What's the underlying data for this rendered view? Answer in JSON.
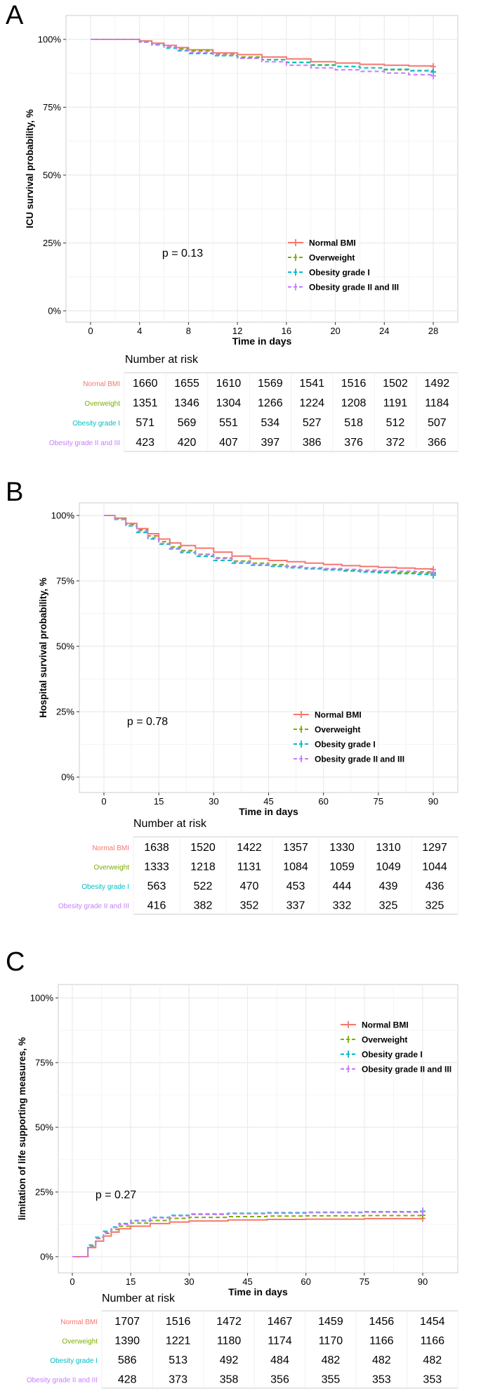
{
  "colors": {
    "normal": "#F8766D",
    "overweight": "#7CAE00",
    "obesity1": "#00BFC4",
    "obesity2": "#C77CFF",
    "panel_bg": "#ffffff",
    "grid": "#ebebeb",
    "border": "#cccccc",
    "text": "#000000",
    "tick_text": "#4d4d4d"
  },
  "risk_title": "Number at risk",
  "chart_data": [
    {
      "type": "line",
      "panel_label": "A",
      "title": "",
      "xlabel": "Time in days",
      "ylabel": "ICU survival probability, %",
      "xlim": [
        0,
        28
      ],
      "ylim": [
        0,
        1
      ],
      "xticks": [
        0,
        4,
        8,
        12,
        16,
        20,
        24,
        28
      ],
      "xtick_labels": [
        "0",
        "4",
        "8",
        "12",
        "16",
        "20",
        "24",
        "28"
      ],
      "yticks": [
        0,
        0.25,
        0.5,
        0.75,
        1
      ],
      "ytick_labels": [
        "0%",
        "25%",
        "50%",
        "75%",
        "100%"
      ],
      "annotation": "p = 0.13",
      "series": [
        {
          "name": "Normal BMI",
          "color_key": "normal",
          "dash": false,
          "x": [
            0,
            4,
            5,
            6,
            7,
            8,
            10,
            12,
            14,
            16,
            18,
            20,
            22,
            24,
            26,
            28
          ],
          "y": [
            1.0,
            0.994,
            0.986,
            0.978,
            0.97,
            0.962,
            0.95,
            0.944,
            0.935,
            0.928,
            0.918,
            0.913,
            0.908,
            0.905,
            0.902,
            0.9
          ]
        },
        {
          "name": "Overweight",
          "color_key": "overweight",
          "dash": true,
          "x": [
            0,
            4,
            5,
            6,
            7,
            8,
            10,
            12,
            14,
            16,
            18,
            20,
            22,
            24,
            26,
            28
          ],
          "y": [
            1.0,
            0.992,
            0.983,
            0.972,
            0.965,
            0.958,
            0.945,
            0.935,
            0.925,
            0.915,
            0.906,
            0.9,
            0.895,
            0.888,
            0.884,
            0.88
          ]
        },
        {
          "name": "Obesity grade I",
          "color_key": "obesity1",
          "dash": true,
          "x": [
            0,
            4,
            5,
            6,
            7,
            8,
            10,
            12,
            14,
            16,
            18,
            20,
            22,
            24,
            26,
            28
          ],
          "y": [
            1.0,
            0.99,
            0.98,
            0.968,
            0.958,
            0.948,
            0.94,
            0.932,
            0.925,
            0.915,
            0.905,
            0.9,
            0.895,
            0.89,
            0.885,
            0.88
          ]
        },
        {
          "name": "Obesity grade II and III",
          "color_key": "obesity2",
          "dash": true,
          "x": [
            0,
            4,
            5,
            6,
            7,
            8,
            10,
            12,
            14,
            16,
            18,
            20,
            22,
            24,
            26,
            28
          ],
          "y": [
            1.0,
            0.99,
            0.982,
            0.972,
            0.962,
            0.952,
            0.942,
            0.93,
            0.918,
            0.905,
            0.895,
            0.888,
            0.882,
            0.876,
            0.87,
            0.866
          ]
        }
      ],
      "risk_table": {
        "row_labels": [
          "Normal BMI",
          "Overweight",
          "Obesity grade I",
          "Obesity grade II and III"
        ],
        "row_color_keys": [
          "normal",
          "overweight",
          "obesity1",
          "obesity2"
        ],
        "rows": [
          [
            "1660",
            "1655",
            "1610",
            "1569",
            "1541",
            "1516",
            "1502",
            "1492"
          ],
          [
            "1351",
            "1346",
            "1304",
            "1266",
            "1224",
            "1208",
            "1191",
            "1184"
          ],
          [
            "571",
            "569",
            "551",
            "534",
            "527",
            "518",
            "512",
            "507"
          ],
          [
            "423",
            "420",
            "407",
            "397",
            "386",
            "376",
            "372",
            "366"
          ]
        ]
      }
    },
    {
      "type": "line",
      "panel_label": "B",
      "title": "",
      "xlabel": "Time in days",
      "ylabel": "Hospital survival probability, %",
      "xlim": [
        0,
        90
      ],
      "ylim": [
        0,
        1
      ],
      "xticks": [
        0,
        15,
        30,
        45,
        60,
        75,
        90
      ],
      "xtick_labels": [
        "0",
        "15",
        "30",
        "45",
        "60",
        "75",
        "90"
      ],
      "yticks": [
        0,
        0.25,
        0.5,
        0.75,
        1
      ],
      "ytick_labels": [
        "0%",
        "25%",
        "50%",
        "75%",
        "100%"
      ],
      "annotation": "p = 0.78",
      "series": [
        {
          "name": "Normal BMI",
          "color_key": "normal",
          "dash": false,
          "x": [
            0,
            3,
            6,
            9,
            12,
            15,
            18,
            21,
            25,
            30,
            35,
            40,
            45,
            50,
            55,
            60,
            65,
            70,
            75,
            80,
            85,
            90
          ],
          "y": [
            1.0,
            0.99,
            0.97,
            0.95,
            0.93,
            0.91,
            0.895,
            0.885,
            0.875,
            0.86,
            0.845,
            0.835,
            0.828,
            0.823,
            0.818,
            0.813,
            0.808,
            0.805,
            0.802,
            0.799,
            0.796,
            0.793
          ]
        },
        {
          "name": "Overweight",
          "color_key": "overweight",
          "dash": true,
          "x": [
            0,
            3,
            6,
            9,
            12,
            15,
            18,
            21,
            25,
            30,
            35,
            40,
            45,
            50,
            55,
            60,
            65,
            70,
            75,
            80,
            85,
            90
          ],
          "y": [
            1.0,
            0.988,
            0.966,
            0.945,
            0.922,
            0.9,
            0.88,
            0.866,
            0.852,
            0.838,
            0.826,
            0.818,
            0.812,
            0.806,
            0.8,
            0.795,
            0.79,
            0.786,
            0.784,
            0.782,
            0.78,
            0.778
          ]
        },
        {
          "name": "Obesity grade I",
          "color_key": "obesity1",
          "dash": true,
          "x": [
            0,
            3,
            6,
            9,
            12,
            15,
            18,
            21,
            25,
            30,
            35,
            40,
            45,
            50,
            55,
            60,
            65,
            70,
            75,
            80,
            85,
            90
          ],
          "y": [
            1.0,
            0.985,
            0.96,
            0.935,
            0.91,
            0.89,
            0.872,
            0.858,
            0.844,
            0.828,
            0.818,
            0.81,
            0.805,
            0.8,
            0.796,
            0.792,
            0.788,
            0.784,
            0.781,
            0.778,
            0.775,
            0.772
          ]
        },
        {
          "name": "Obesity grade II and III",
          "color_key": "obesity2",
          "dash": true,
          "x": [
            0,
            3,
            6,
            9,
            12,
            15,
            18,
            21,
            25,
            30,
            35,
            40,
            45,
            50,
            55,
            60,
            65,
            70,
            75,
            80,
            85,
            90
          ],
          "y": [
            1.0,
            0.986,
            0.962,
            0.94,
            0.915,
            0.893,
            0.875,
            0.862,
            0.85,
            0.835,
            0.823,
            0.815,
            0.809,
            0.804,
            0.8,
            0.797,
            0.794,
            0.791,
            0.789,
            0.787,
            0.785,
            0.783
          ]
        }
      ],
      "risk_table": {
        "row_labels": [
          "Normal BMI",
          "Overweight",
          "Obesity grade I",
          "Obesity grade II and III"
        ],
        "row_color_keys": [
          "normal",
          "overweight",
          "obesity1",
          "obesity2"
        ],
        "rows": [
          [
            "1638",
            "1520",
            "1422",
            "1357",
            "1330",
            "1310",
            "1297"
          ],
          [
            "1333",
            "1218",
            "1131",
            "1084",
            "1059",
            "1049",
            "1044"
          ],
          [
            "563",
            "522",
            "470",
            "453",
            "444",
            "439",
            "436"
          ],
          [
            "416",
            "382",
            "352",
            "337",
            "332",
            "325",
            "325"
          ]
        ]
      }
    },
    {
      "type": "line",
      "panel_label": "C",
      "title": "",
      "xlabel": "Time in days",
      "ylabel": "limitation of life supporting measures, %",
      "xlim": [
        0,
        90
      ],
      "ylim": [
        0,
        1
      ],
      "xticks": [
        0,
        15,
        30,
        45,
        60,
        75,
        90
      ],
      "xtick_labels": [
        "0",
        "15",
        "30",
        "45",
        "60",
        "75",
        "90"
      ],
      "yticks": [
        0,
        0.25,
        0.5,
        0.75,
        1
      ],
      "ytick_labels": [
        "0%",
        "25%",
        "50%",
        "75%",
        "100%"
      ],
      "annotation": "p = 0.27",
      "series": [
        {
          "name": "Normal BMI",
          "color_key": "normal",
          "dash": false,
          "x": [
            0,
            3,
            4,
            6,
            8,
            10,
            12,
            15,
            20,
            25,
            30,
            40,
            50,
            60,
            75,
            90
          ],
          "y": [
            0.0,
            0.0,
            0.035,
            0.06,
            0.08,
            0.095,
            0.108,
            0.118,
            0.128,
            0.134,
            0.138,
            0.142,
            0.144,
            0.145,
            0.147,
            0.148
          ]
        },
        {
          "name": "Overweight",
          "color_key": "overweight",
          "dash": true,
          "x": [
            0,
            3,
            4,
            6,
            8,
            10,
            12,
            15,
            20,
            25,
            30,
            40,
            50,
            60,
            75,
            90
          ],
          "y": [
            0.0,
            0.0,
            0.04,
            0.07,
            0.09,
            0.105,
            0.118,
            0.13,
            0.14,
            0.148,
            0.152,
            0.155,
            0.157,
            0.158,
            0.159,
            0.16
          ]
        },
        {
          "name": "Obesity grade I",
          "color_key": "obesity1",
          "dash": true,
          "x": [
            0,
            3,
            4,
            6,
            8,
            10,
            12,
            15,
            20,
            25,
            30,
            40,
            50,
            60,
            75,
            90
          ],
          "y": [
            0.0,
            0.0,
            0.045,
            0.075,
            0.098,
            0.115,
            0.128,
            0.14,
            0.152,
            0.16,
            0.165,
            0.168,
            0.17,
            0.172,
            0.174,
            0.176
          ]
        },
        {
          "name": "Obesity grade II and III",
          "color_key": "obesity2",
          "dash": true,
          "x": [
            0,
            3,
            4,
            6,
            8,
            10,
            12,
            15,
            20,
            25,
            30,
            40,
            50,
            60,
            75,
            90
          ],
          "y": [
            0.0,
            0.0,
            0.042,
            0.072,
            0.095,
            0.112,
            0.125,
            0.138,
            0.15,
            0.158,
            0.163,
            0.166,
            0.168,
            0.17,
            0.172,
            0.174
          ]
        }
      ],
      "risk_table": {
        "row_labels": [
          "Normal BMI",
          "Overweight",
          "Obesity grade I",
          "Obesity grade II and III"
        ],
        "row_color_keys": [
          "normal",
          "overweight",
          "obesity1",
          "obesity2"
        ],
        "rows": [
          [
            "1707",
            "1516",
            "1472",
            "1467",
            "1459",
            "1456",
            "1454"
          ],
          [
            "1390",
            "1221",
            "1180",
            "1174",
            "1170",
            "1166",
            "1166"
          ],
          [
            "586",
            "513",
            "492",
            "484",
            "482",
            "482",
            "482"
          ],
          [
            "428",
            "373",
            "358",
            "356",
            "355",
            "353",
            "353"
          ]
        ]
      }
    }
  ]
}
